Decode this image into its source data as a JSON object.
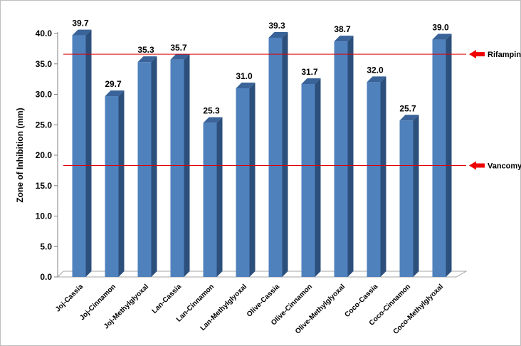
{
  "chart_data": {
    "type": "bar",
    "categories": [
      "Joj-Cassia",
      "Joj-Cinnamon",
      "Joj-Methylglyoxal",
      "Lan-Cassia",
      "Lan-Cinnamon",
      "Lan-Methylglyoxal",
      "Olive-Cassia",
      "Olive-Cinnamon",
      "Olive-Methylglyoxal",
      "Coco-Cassia",
      "Coco-Cinnamon",
      "Coco-Methylglyoxal"
    ],
    "values": [
      39.7,
      29.7,
      35.3,
      35.7,
      25.3,
      31.0,
      39.3,
      31.7,
      38.7,
      32.0,
      25.7,
      39.0
    ],
    "value_labels": [
      "39.7",
      "29.7",
      "35.3",
      "35.7",
      "25.3",
      "31.0",
      "39.3",
      "31.7",
      "38.7",
      "32.0",
      "25.7",
      "39.0"
    ],
    "ylabel": "Zone of Inhibition (mm)",
    "ylim": [
      0,
      40
    ],
    "yticks": [
      "0.0",
      "5.0",
      "10.0",
      "15.0",
      "20.0",
      "25.0",
      "30.0",
      "35.0",
      "40.0"
    ],
    "reference_lines": [
      {
        "name": "Rifampin",
        "value": 36.6
      },
      {
        "name": "Vancomycin",
        "value": 18.3
      }
    ],
    "colors": {
      "bar": "#4f81bd",
      "bar_side": "#2c4f7c",
      "bar_top": "#3a6499",
      "reference": "#e00000",
      "arrow": "#ee0000"
    },
    "grid": false
  }
}
